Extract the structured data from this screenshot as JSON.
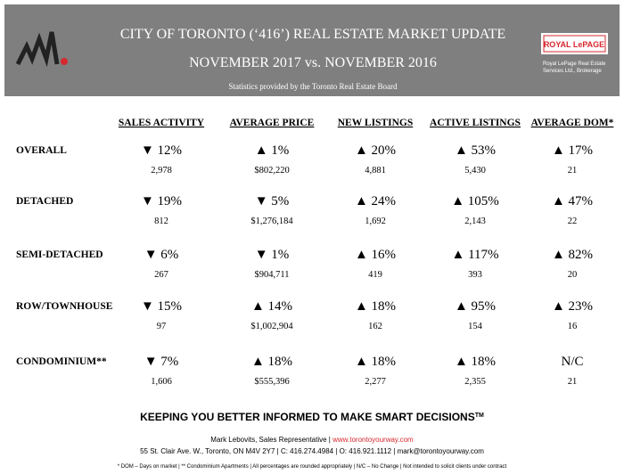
{
  "header": {
    "title": "CITY OF TORONTO (‘416’) REAL ESTATE MARKET UPDATE",
    "subtitle": "NOVEMBER 2017 vs. NOVEMBER 2016",
    "source": "Statistics provided by the Toronto Real Estate Board",
    "brand": {
      "name": "ROYAL LePAGE",
      "line1": "Royal LePage Real Estate",
      "line2": "Services Ltd., Brokerage"
    }
  },
  "table": {
    "columns": [
      "SALES ACTIVITY",
      "AVERAGE PRICE",
      "NEW LISTINGS",
      "ACTIVE LISTINGS",
      "AVERAGE DOM*"
    ],
    "rows": [
      {
        "label": "OVERALL",
        "cells": [
          {
            "change": "▼ 12%",
            "value": "2,978"
          },
          {
            "change": "▲ 1%",
            "value": "$802,220"
          },
          {
            "change": "▲ 20%",
            "value": "4,881"
          },
          {
            "change": "▲ 53%",
            "value": "5,430"
          },
          {
            "change": "▲ 17%",
            "value": "21"
          }
        ]
      },
      {
        "label": "DETACHED",
        "cells": [
          {
            "change": "▼ 19%",
            "value": "812"
          },
          {
            "change": "▼ 5%",
            "value": "$1,276,184"
          },
          {
            "change": "▲ 24%",
            "value": "1,692"
          },
          {
            "change": "▲ 105%",
            "value": "2,143"
          },
          {
            "change": "▲ 47%",
            "value": "22"
          }
        ]
      },
      {
        "label": "SEMI-DETACHED",
        "cells": [
          {
            "change": "▼ 6%",
            "value": "267"
          },
          {
            "change": "▼ 1%",
            "value": "$904,711"
          },
          {
            "change": "▲ 16%",
            "value": "419"
          },
          {
            "change": "▲ 117%",
            "value": "393"
          },
          {
            "change": "▲ 82%",
            "value": "20"
          }
        ]
      },
      {
        "label": "ROW/TOWNHOUSE",
        "cells": [
          {
            "change": "▼ 15%",
            "value": "97"
          },
          {
            "change": "▲ 14%",
            "value": "$1,002,904"
          },
          {
            "change": "▲ 18%",
            "value": "162"
          },
          {
            "change": "▲ 95%",
            "value": "154"
          },
          {
            "change": "▲ 23%",
            "value": "16"
          }
        ]
      },
      {
        "label": "CONDOMINIUM**",
        "cells": [
          {
            "change": "▼ 7%",
            "value": "1,606"
          },
          {
            "change": "▲ 18%",
            "value": "$555,396"
          },
          {
            "change": "▲ 18%",
            "value": "2,277"
          },
          {
            "change": "▲ 18%",
            "value": "2,355"
          },
          {
            "change": "N/C",
            "value": "21"
          }
        ]
      }
    ]
  },
  "footer": {
    "tagline": "KEEPING YOU BETTER INFORMED TO MAKE SMART DECISIONS",
    "trademark": "TM",
    "contact": "Mark Lebovits, Sales Representative |",
    "website": "www.torontoyourway.com",
    "address": "55 St. Clair Ave. W., Toronto, ON  M4V 2Y7 | C: 416.274.4984 | O: 416.921.1112 | mark@torontoyourway.com",
    "note": "* DOM – Days on market  |  ** Condominium Apartments  |  All percentages are rounded appropriately  |  N/C – No Change  |  Not intended to solicit clients under contract"
  }
}
